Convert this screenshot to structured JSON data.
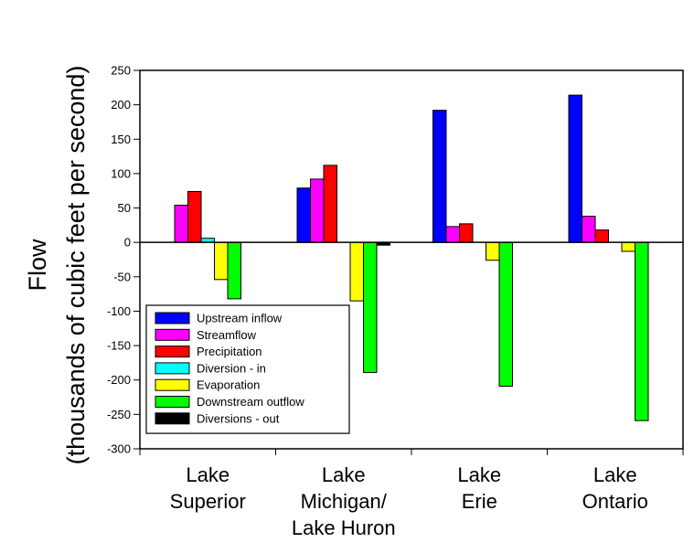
{
  "chart_data": {
    "type": "bar",
    "ylabel_line1": "Flow",
    "ylabel_line2": "(thousands of cubic feet per second)",
    "xlabel": "",
    "ylim": [
      -300,
      250
    ],
    "yticks": [
      250,
      200,
      150,
      100,
      50,
      0,
      -50,
      -100,
      -150,
      -200,
      -250,
      -300
    ],
    "legend_position": "bottom-left",
    "grid": false,
    "categories": [
      [
        "Lake",
        "Superior"
      ],
      [
        "Lake",
        "Michigan/",
        "Lake Huron"
      ],
      [
        "Lake",
        "Erie"
      ],
      [
        "Lake",
        "Ontario"
      ]
    ],
    "series": [
      {
        "name": "Upstream inflow",
        "color": "#0000ff",
        "values": [
          0,
          79,
          192,
          214
        ]
      },
      {
        "name": "Streamflow",
        "color": "#ff00ff",
        "values": [
          54,
          92,
          23,
          38
        ]
      },
      {
        "name": "Precipitation",
        "color": "#ff0000",
        "values": [
          74,
          112,
          27,
          18
        ]
      },
      {
        "name": "Diversion - in",
        "color": "#00ffff",
        "values": [
          6,
          0,
          0,
          0
        ]
      },
      {
        "name": "Evaporation",
        "color": "#ffff00",
        "values": [
          -54,
          -85,
          -26,
          -13
        ]
      },
      {
        "name": "Downstream outflow",
        "color": "#00ff00",
        "values": [
          -82,
          -189,
          -209,
          -259
        ]
      },
      {
        "name": "Diversions - out",
        "color": "#000000",
        "values": [
          0,
          -4,
          0,
          0
        ]
      }
    ]
  }
}
